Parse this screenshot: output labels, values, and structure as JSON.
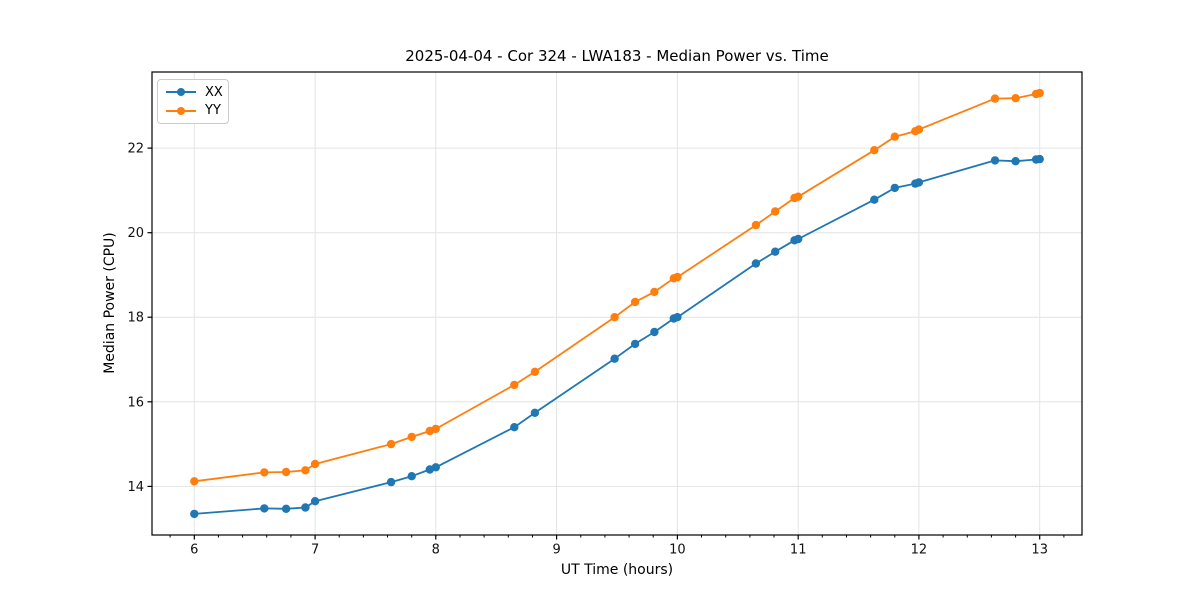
{
  "chart_data": {
    "type": "line",
    "title": "2025-04-04 - Cor 324 - LWA183 - Median Power vs. Time",
    "xlabel": "UT Time (hours)",
    "ylabel": "Median Power (CPU)",
    "xlim": [
      5.65,
      13.35
    ],
    "ylim": [
      12.85,
      23.8
    ],
    "x_ticks": [
      6,
      7,
      8,
      9,
      10,
      11,
      12,
      13
    ],
    "y_ticks": [
      14,
      16,
      18,
      20,
      22
    ],
    "x_minor_tick_step": 0.2,
    "grid": true,
    "legend_position": "upper-left",
    "background": "#ffffff",
    "grid_color": "#e4e4e4",
    "x": [
      6.0,
      6.58,
      6.76,
      6.92,
      7.0,
      7.63,
      7.8,
      7.95,
      8.0,
      8.65,
      8.82,
      9.48,
      9.65,
      9.81,
      9.97,
      10.0,
      10.65,
      10.81,
      10.97,
      11.0,
      11.63,
      11.8,
      11.97,
      12.0,
      12.63,
      12.8,
      12.97,
      13.0
    ],
    "series": [
      {
        "name": "XX",
        "color": "#1f77b4",
        "values": [
          13.35,
          13.48,
          13.47,
          13.5,
          13.65,
          14.1,
          14.24,
          14.4,
          14.45,
          15.4,
          15.74,
          17.02,
          17.37,
          17.65,
          17.97,
          18.0,
          19.27,
          19.55,
          19.82,
          19.85,
          20.78,
          21.06,
          21.16,
          21.19,
          21.71,
          21.69,
          21.73,
          21.74
        ]
      },
      {
        "name": "YY",
        "color": "#ff7f0e",
        "values": [
          14.12,
          14.33,
          14.34,
          14.38,
          14.53,
          15.0,
          15.17,
          15.31,
          15.36,
          16.4,
          16.71,
          18.0,
          18.36,
          18.6,
          18.92,
          18.95,
          20.18,
          20.5,
          20.82,
          20.85,
          21.95,
          22.27,
          22.4,
          22.44,
          23.17,
          23.18,
          23.28,
          23.3
        ]
      }
    ]
  }
}
